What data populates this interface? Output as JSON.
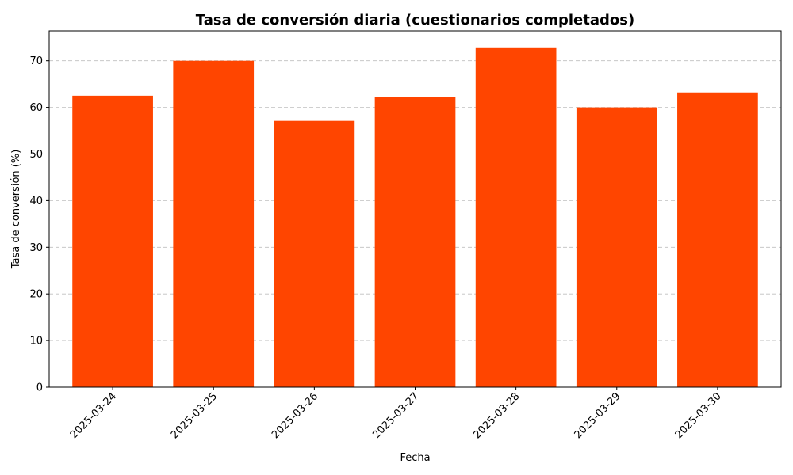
{
  "chart_data": {
    "type": "bar",
    "title": "Tasa de conversión diaria (cuestionarios completados)",
    "xlabel": "Fecha",
    "ylabel": "Tasa de conversión (%)",
    "categories": [
      "2025-03-24",
      "2025-03-25",
      "2025-03-26",
      "2025-03-27",
      "2025-03-28",
      "2025-03-29",
      "2025-03-30"
    ],
    "values": [
      62.5,
      70.0,
      57.1,
      62.2,
      72.7,
      60.0,
      63.2
    ],
    "ylim": [
      0,
      76.4
    ],
    "yticks": [
      0,
      10,
      20,
      30,
      40,
      50,
      60,
      70
    ],
    "grid": "y-dashed",
    "legend": "none",
    "bar_color": "#ff4500"
  }
}
